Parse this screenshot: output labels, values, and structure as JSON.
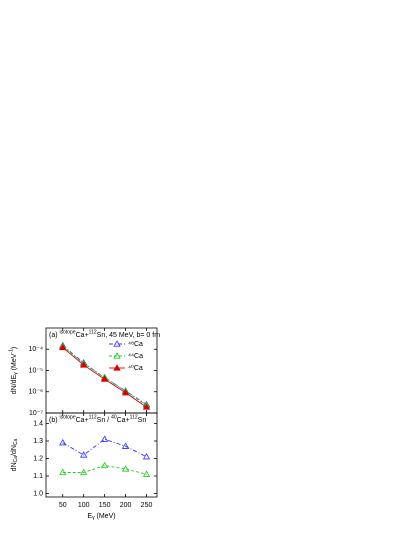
{
  "chart_data": [
    {
      "type": "line",
      "annotation": [
        {
          "text": "(a) "
        },
        {
          "text": "isotope",
          "sup": true
        },
        {
          "text": "Ca+"
        },
        {
          "text": "112",
          "sup": true
        },
        {
          "text": "Sn, 45 MeV, b= 0 fm"
        }
      ],
      "ylabel": [
        {
          "text": "dN/dE"
        },
        {
          "text": "γ",
          "sub": true
        },
        {
          "text": " (MeV"
        },
        {
          "text": "-1",
          "sup": true
        },
        {
          "text": ")"
        }
      ],
      "x": [
        50,
        100,
        150,
        200,
        250
      ],
      "xlim": [
        10,
        275
      ],
      "xticks": [
        50,
        100,
        150,
        200,
        250
      ],
      "ylim": [
        1e-07,
        0.001
      ],
      "log_y": true,
      "yticks": [
        {
          "value": 1e-07,
          "label": "10⁻⁷"
        },
        {
          "value": 1e-06,
          "label": "10⁻⁶"
        },
        {
          "value": 1e-05,
          "label": "10⁻⁵"
        },
        {
          "value": 0.0001,
          "label": "10⁻⁴"
        }
      ],
      "legend": "upper right",
      "series": [
        {
          "name": "⁴⁸Ca",
          "color": "#3333ff",
          "linestyle": "dash-dot",
          "filled": false,
          "values": [
            0.00015,
            2.3e-05,
            4.5e-06,
            1.1e-06,
            2.5e-07
          ]
        },
        {
          "name": "⁴⁴Ca",
          "color": "#22cc22",
          "linestyle": "dash",
          "filled": false,
          "values": [
            0.00014,
            2.1e-05,
            4.8e-06,
            1.05e-06,
            2.3e-07
          ]
        },
        {
          "name": "⁴⁰Ca",
          "color": "#dd0000",
          "linestyle": "solid",
          "filled": true,
          "values": [
            0.00012,
            1.8e-05,
            3.9e-06,
            9e-07,
            1.9e-07
          ]
        }
      ]
    },
    {
      "type": "line",
      "annotation": [
        {
          "text": "(b) "
        },
        {
          "text": "isotope",
          "sup": true
        },
        {
          "text": "Ca+"
        },
        {
          "text": "112",
          "sup": true
        },
        {
          "text": "Sn / "
        },
        {
          "text": "40",
          "sup": true
        },
        {
          "text": "Ca+"
        },
        {
          "text": "112",
          "sup": true
        },
        {
          "text": "Sn"
        }
      ],
      "ylabel": [
        {
          "text": "dN"
        },
        {
          "text": "Ca",
          "sub": true
        },
        {
          "text": "/dN"
        },
        {
          "text": "Ca",
          "sub": true
        }
      ],
      "xlabel": [
        {
          "text": "E"
        },
        {
          "text": "γ",
          "sub": true
        },
        {
          "text": " (MeV)"
        }
      ],
      "x": [
        50,
        100,
        150,
        200,
        250
      ],
      "xlim": [
        10,
        275
      ],
      "xticks": [
        50,
        100,
        150,
        200,
        250
      ],
      "ylim": [
        0.98,
        1.46
      ],
      "yticks": [
        {
          "value": 1,
          "label": "1.0"
        },
        1.1,
        1.2,
        1.3,
        1.4
      ],
      "series": [
        {
          "color": "#3333ff",
          "linestyle": "dash-dot",
          "filled": false,
          "values": [
            1.29,
            1.22,
            1.31,
            1.27,
            1.21
          ]
        },
        {
          "color": "#22cc22",
          "linestyle": "dash",
          "filled": false,
          "values": [
            1.12,
            1.12,
            1.16,
            1.14,
            1.11
          ]
        }
      ]
    }
  ]
}
